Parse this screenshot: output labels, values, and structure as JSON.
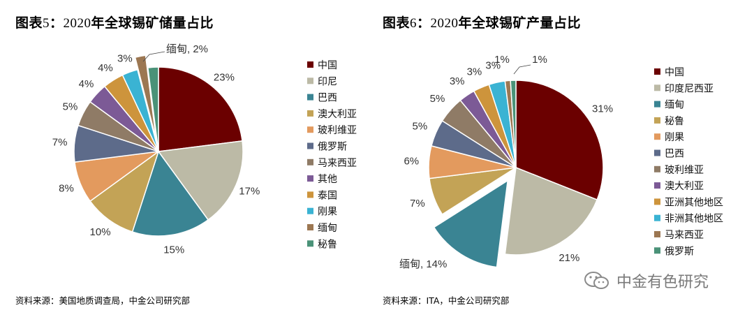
{
  "figures": [
    {
      "label_prefix": "图表",
      "label_num": "5",
      "label_sep": "：",
      "title_year": "2020",
      "title_text": "年全球锡矿储量占比",
      "source": "资料来源：美国地质调查局，中金公司研究部"
    },
    {
      "label_prefix": "图表",
      "label_num": "6",
      "label_sep": "：",
      "title_year": "2020",
      "title_text": "年全球锡矿产量占比",
      "source": "资料来源：ITA，中金公司研究部"
    }
  ],
  "watermark": {
    "text": "中金有色研究",
    "icon": "wechat-icon"
  },
  "chart_data": [
    {
      "type": "pie",
      "title": "2020年全球锡矿储量占比",
      "start": "12 o'clock, clockwise",
      "exploded": "缅甸",
      "slices": [
        {
          "name": "中国",
          "value": 23,
          "label": "23%",
          "color": "#6b0000"
        },
        {
          "name": "印尼",
          "value": 17,
          "label": "17%",
          "color": "#bcbaa6"
        },
        {
          "name": "巴西",
          "value": 15,
          "label": "15%",
          "color": "#3a8493"
        },
        {
          "name": "澳大利亚",
          "value": 10,
          "label": "10%",
          "color": "#c3a356"
        },
        {
          "name": "玻利维亚",
          "value": 8,
          "label": "8%",
          "color": "#e39a5e"
        },
        {
          "name": "俄罗斯",
          "value": 7,
          "label": "7%",
          "color": "#5d6b8a"
        },
        {
          "name": "马来西亚",
          "value": 5,
          "label": "5%",
          "color": "#8f7b66"
        },
        {
          "name": "其他",
          "value": 4,
          "label": "4%",
          "color": "#7c5a96"
        },
        {
          "name": "泰国",
          "value": 4,
          "label": "4%",
          "color": "#cd943c"
        },
        {
          "name": "刚果",
          "value": 3,
          "label": "3%",
          "color": "#3ab3d3"
        },
        {
          "name": "缅甸",
          "value": 2,
          "label": "缅甸, 2%",
          "color": "#9c7752"
        },
        {
          "name": "秘鲁",
          "value": 2,
          "label": "",
          "color": "#4a9278"
        }
      ]
    },
    {
      "type": "pie",
      "title": "2020年全球锡矿产量占比",
      "start": "12 o'clock, clockwise",
      "exploded": "缅甸",
      "slices": [
        {
          "name": "中国",
          "value": 31,
          "label": "31%",
          "color": "#6b0000"
        },
        {
          "name": "印度尼西亚",
          "value": 21,
          "label": "21%",
          "color": "#bcbaa6"
        },
        {
          "name": "缅甸",
          "value": 14,
          "label": "缅甸, 14%",
          "color": "#3a8493"
        },
        {
          "name": "秘鲁",
          "value": 7,
          "label": "7%",
          "color": "#c3a356"
        },
        {
          "name": "刚果",
          "value": 6,
          "label": "6%",
          "color": "#e39a5e"
        },
        {
          "name": "巴西",
          "value": 5,
          "label": "5%",
          "color": "#5d6b8a"
        },
        {
          "name": "玻利维亚",
          "value": 5,
          "label": "5%",
          "color": "#8f7b66"
        },
        {
          "name": "澳大利亚",
          "value": 3,
          "label": "3%",
          "color": "#7c5a96"
        },
        {
          "name": "亚洲其他地区",
          "value": 3,
          "label": "3%",
          "color": "#cd943c"
        },
        {
          "name": "非洲其他地区",
          "value": 3,
          "label": "3%",
          "color": "#3ab3d3"
        },
        {
          "name": "马来西亚",
          "value": 1,
          "label": "1%",
          "color": "#9c7752"
        },
        {
          "name": "俄罗斯",
          "value": 1,
          "label": "1%",
          "color": "#4a9278"
        }
      ]
    }
  ]
}
